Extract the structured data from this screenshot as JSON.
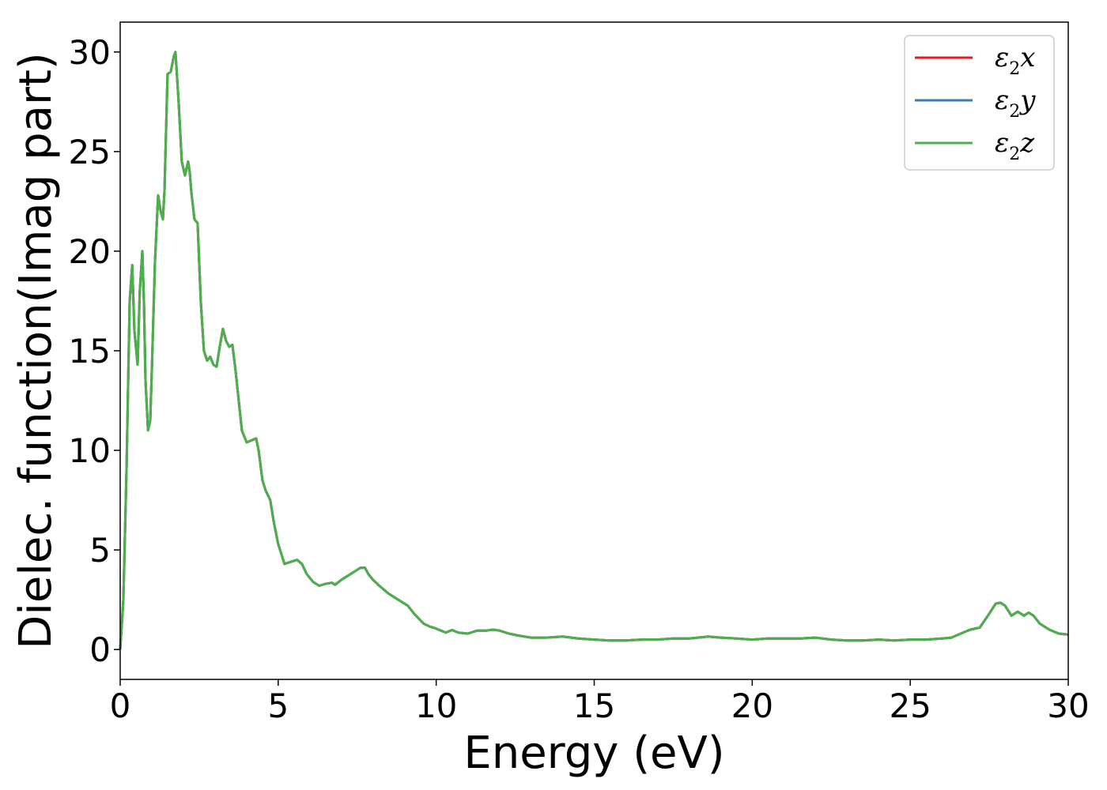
{
  "chart_data": {
    "type": "line",
    "title": "",
    "xlabel": "Energy (eV)",
    "ylabel": "Dielec. function(Imag part)",
    "xlim": [
      0,
      30
    ],
    "ylim": [
      -1.5,
      31.5
    ],
    "xticks": [
      0,
      5,
      10,
      15,
      20,
      25,
      30
    ],
    "yticks": [
      0,
      5,
      10,
      15,
      20,
      25,
      30
    ],
    "grid": false,
    "legend_position": "top-right",
    "legend": [
      {
        "symbol": "ε",
        "sub": "2",
        "axis": "x",
        "color": "#e41a1c"
      },
      {
        "symbol": "ε",
        "sub": "2",
        "axis": "y",
        "color": "#377eb8"
      },
      {
        "symbol": "ε",
        "sub": "2",
        "axis": "z",
        "color": "#4daf4a"
      }
    ],
    "x": [
      0,
      0.1,
      0.2,
      0.3,
      0.38,
      0.45,
      0.55,
      0.62,
      0.7,
      0.75,
      0.8,
      0.88,
      0.95,
      1.0,
      1.1,
      1.2,
      1.28,
      1.35,
      1.4,
      1.5,
      1.6,
      1.7,
      1.75,
      1.85,
      1.95,
      2.05,
      2.15,
      2.2,
      2.25,
      2.35,
      2.45,
      2.55,
      2.65,
      2.75,
      2.85,
      2.95,
      3.05,
      3.15,
      3.25,
      3.35,
      3.45,
      3.55,
      3.65,
      3.75,
      3.85,
      4.0,
      4.15,
      4.3,
      4.38,
      4.5,
      4.6,
      4.75,
      4.85,
      5.0,
      5.2,
      5.4,
      5.6,
      5.75,
      5.9,
      6.1,
      6.3,
      6.5,
      6.7,
      6.8,
      7.0,
      7.2,
      7.4,
      7.6,
      7.75,
      7.85,
      8.0,
      8.2,
      8.5,
      8.8,
      9.1,
      9.3,
      9.6,
      9.8,
      10.0,
      10.3,
      10.5,
      10.7,
      11.0,
      11.3,
      11.6,
      11.8,
      12.0,
      12.3,
      12.6,
      13.0,
      13.5,
      14.0,
      14.5,
      15.0,
      15.5,
      16.0,
      16.5,
      17.0,
      17.5,
      18.0,
      18.6,
      19.0,
      19.5,
      20.0,
      20.5,
      21.0,
      21.5,
      22.0,
      22.5,
      23.0,
      23.5,
      24.0,
      24.5,
      25.0,
      25.5,
      26.0,
      26.3,
      26.6,
      26.9,
      27.2,
      27.5,
      27.7,
      27.85,
      28.0,
      28.2,
      28.4,
      28.6,
      28.75,
      28.9,
      29.1,
      29.4,
      29.7,
      30.0
    ],
    "series": [
      {
        "name": "ε2x",
        "color": "#e41a1c",
        "values": [
          0,
          2.5,
          9.0,
          17.5,
          19.3,
          16.0,
          14.3,
          18.0,
          20.0,
          17.5,
          13.5,
          11.0,
          11.5,
          14.0,
          19.5,
          22.8,
          22.0,
          21.6,
          23.0,
          28.9,
          29.0,
          29.8,
          30.0,
          27.5,
          24.5,
          23.8,
          24.5,
          24.0,
          23.0,
          21.6,
          21.4,
          17.5,
          15.0,
          14.5,
          14.7,
          14.3,
          14.2,
          15.2,
          16.1,
          15.5,
          15.2,
          15.3,
          14.0,
          12.5,
          11.0,
          10.4,
          10.5,
          10.6,
          10.0,
          8.5,
          8.0,
          7.5,
          6.5,
          5.3,
          4.3,
          4.4,
          4.5,
          4.3,
          3.8,
          3.4,
          3.2,
          3.3,
          3.35,
          3.25,
          3.5,
          3.7,
          3.9,
          4.1,
          4.1,
          3.8,
          3.5,
          3.2,
          2.8,
          2.5,
          2.2,
          1.8,
          1.3,
          1.15,
          1.05,
          0.85,
          0.98,
          0.85,
          0.8,
          0.95,
          0.95,
          1.0,
          0.95,
          0.8,
          0.7,
          0.6,
          0.6,
          0.65,
          0.55,
          0.5,
          0.45,
          0.45,
          0.5,
          0.5,
          0.55,
          0.55,
          0.65,
          0.6,
          0.55,
          0.5,
          0.55,
          0.55,
          0.55,
          0.6,
          0.5,
          0.45,
          0.45,
          0.5,
          0.45,
          0.5,
          0.5,
          0.55,
          0.6,
          0.8,
          1.0,
          1.1,
          1.8,
          2.3,
          2.35,
          2.2,
          1.7,
          1.9,
          1.7,
          1.85,
          1.7,
          1.3,
          1.0,
          0.8,
          0.75
        ]
      },
      {
        "name": "ε2y",
        "color": "#377eb8",
        "values": [
          0,
          2.5,
          9.0,
          17.5,
          19.3,
          16.0,
          14.3,
          18.0,
          20.0,
          17.5,
          13.5,
          11.0,
          11.5,
          14.0,
          19.5,
          22.8,
          22.0,
          21.6,
          23.0,
          28.9,
          29.0,
          29.8,
          30.0,
          27.5,
          24.5,
          23.8,
          24.5,
          24.0,
          23.0,
          21.6,
          21.4,
          17.5,
          15.0,
          14.5,
          14.7,
          14.3,
          14.2,
          15.2,
          16.1,
          15.5,
          15.2,
          15.3,
          14.0,
          12.5,
          11.0,
          10.4,
          10.5,
          10.6,
          10.0,
          8.5,
          8.0,
          7.5,
          6.5,
          5.3,
          4.3,
          4.4,
          4.5,
          4.3,
          3.8,
          3.4,
          3.2,
          3.3,
          3.35,
          3.25,
          3.5,
          3.7,
          3.9,
          4.1,
          4.1,
          3.8,
          3.5,
          3.2,
          2.8,
          2.5,
          2.2,
          1.8,
          1.3,
          1.15,
          1.05,
          0.85,
          0.98,
          0.85,
          0.8,
          0.95,
          0.95,
          1.0,
          0.95,
          0.8,
          0.7,
          0.6,
          0.6,
          0.65,
          0.55,
          0.5,
          0.45,
          0.45,
          0.5,
          0.5,
          0.55,
          0.55,
          0.65,
          0.6,
          0.55,
          0.5,
          0.55,
          0.55,
          0.55,
          0.6,
          0.5,
          0.45,
          0.45,
          0.5,
          0.45,
          0.5,
          0.5,
          0.55,
          0.6,
          0.8,
          1.0,
          1.1,
          1.8,
          2.3,
          2.35,
          2.2,
          1.7,
          1.9,
          1.7,
          1.85,
          1.7,
          1.3,
          1.0,
          0.8,
          0.75
        ]
      },
      {
        "name": "ε2z",
        "color": "#4daf4a",
        "values": [
          0,
          2.5,
          9.0,
          17.5,
          19.3,
          16.0,
          14.3,
          18.0,
          20.0,
          17.5,
          13.5,
          11.0,
          11.5,
          14.0,
          19.5,
          22.8,
          22.0,
          21.6,
          23.0,
          28.9,
          29.0,
          29.8,
          30.0,
          27.5,
          24.5,
          23.8,
          24.5,
          24.0,
          23.0,
          21.6,
          21.4,
          17.5,
          15.0,
          14.5,
          14.7,
          14.3,
          14.2,
          15.2,
          16.1,
          15.5,
          15.2,
          15.3,
          14.0,
          12.5,
          11.0,
          10.4,
          10.5,
          10.6,
          10.0,
          8.5,
          8.0,
          7.5,
          6.5,
          5.3,
          4.3,
          4.4,
          4.5,
          4.3,
          3.8,
          3.4,
          3.2,
          3.3,
          3.35,
          3.25,
          3.5,
          3.7,
          3.9,
          4.1,
          4.1,
          3.8,
          3.5,
          3.2,
          2.8,
          2.5,
          2.2,
          1.8,
          1.3,
          1.15,
          1.05,
          0.85,
          0.98,
          0.85,
          0.8,
          0.95,
          0.95,
          1.0,
          0.95,
          0.8,
          0.7,
          0.6,
          0.6,
          0.65,
          0.55,
          0.5,
          0.45,
          0.45,
          0.5,
          0.5,
          0.55,
          0.55,
          0.65,
          0.6,
          0.55,
          0.5,
          0.55,
          0.55,
          0.55,
          0.6,
          0.5,
          0.45,
          0.45,
          0.5,
          0.45,
          0.5,
          0.5,
          0.55,
          0.6,
          0.8,
          1.0,
          1.1,
          1.8,
          2.3,
          2.35,
          2.2,
          1.7,
          1.9,
          1.7,
          1.85,
          1.7,
          1.3,
          1.0,
          0.8,
          0.75
        ]
      }
    ]
  }
}
